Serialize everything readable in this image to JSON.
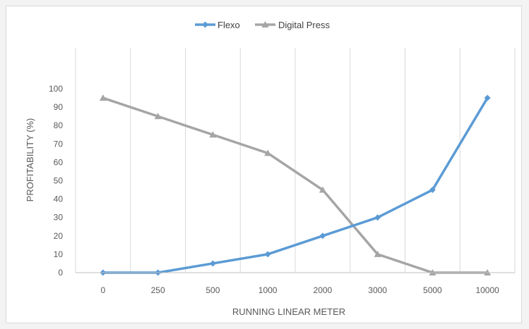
{
  "chart_data": {
    "type": "line",
    "title": "",
    "xlabel": "RUNNING LINEAR METER",
    "ylabel": "PROFITABILITY  (%)",
    "categories": [
      "0",
      "250",
      "500",
      "1000",
      "2000",
      "3000",
      "5000",
      "10000"
    ],
    "ylim": [
      0,
      100
    ],
    "yticks": [
      0,
      10,
      20,
      30,
      40,
      50,
      60,
      70,
      80,
      90,
      100
    ],
    "grid": "vertical",
    "legend_position": "top",
    "series": [
      {
        "name": "Flexo",
        "color": "#5b9bd5",
        "marker": "diamond",
        "values": [
          0,
          0,
          5,
          10,
          20,
          30,
          45,
          95
        ]
      },
      {
        "name": "Digital Press",
        "color": "#a5a5a5",
        "marker": "triangle",
        "values": [
          95,
          85,
          75,
          65,
          45,
          10,
          0,
          0
        ]
      }
    ]
  }
}
